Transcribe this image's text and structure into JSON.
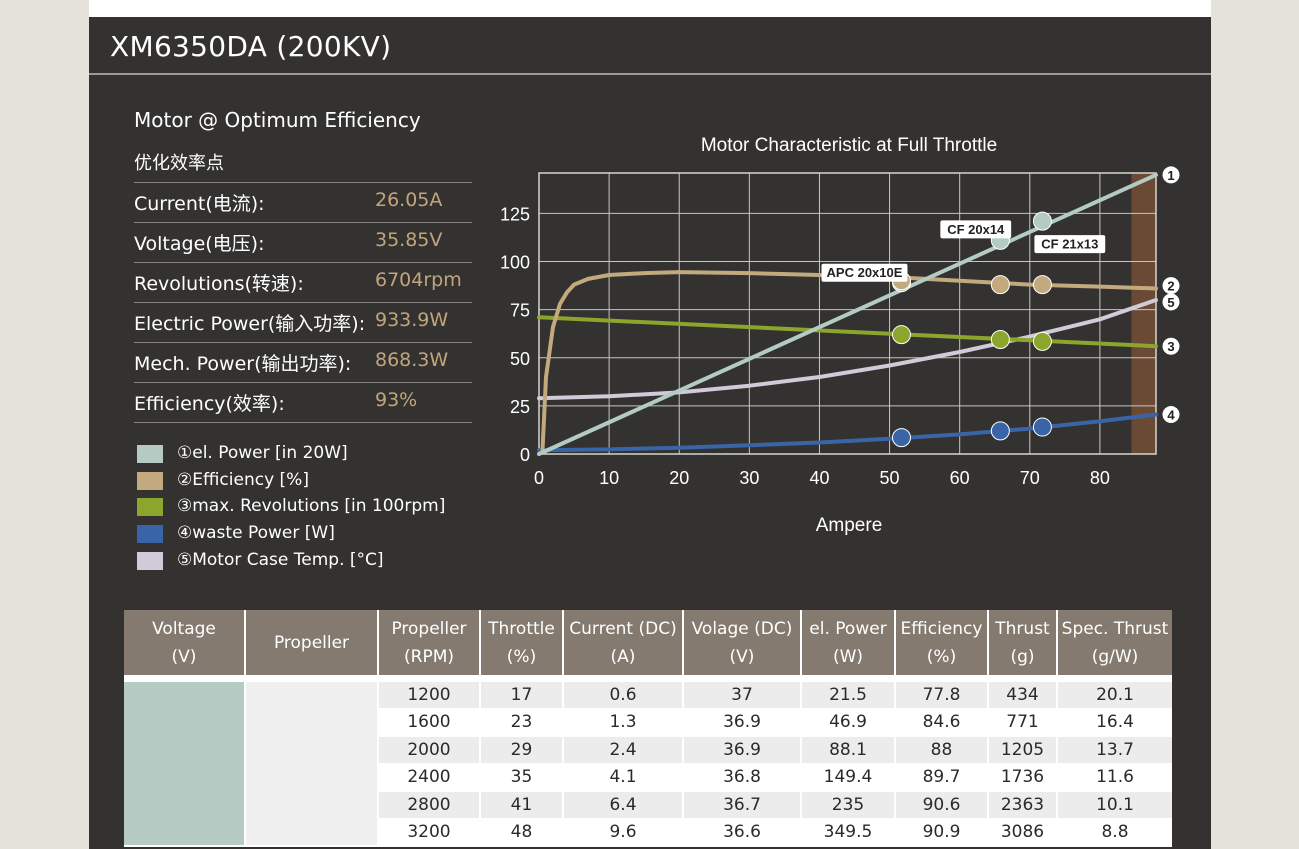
{
  "page_title": "XM6350DA (200KV)",
  "spec": {
    "heading": "Motor @ Optimum Efficiency",
    "subheading": "优化效率点",
    "rows": [
      {
        "label": "Current(电流):",
        "value": "26.05A"
      },
      {
        "label": "Voltage(电压):",
        "value": "35.85V"
      },
      {
        "label": "Revolutions(转速):",
        "value": "6704rpm"
      },
      {
        "label": "Electric Power(输入功率):",
        "value": "933.9W"
      },
      {
        "label": "Mech. Power(输出功率):",
        "value": "868.3W"
      },
      {
        "label": "Efficiency(效率):",
        "value": "93%"
      }
    ]
  },
  "legend": [
    {
      "label": "①el. Power [in 20W]",
      "color": "#b4cbc4"
    },
    {
      "label": "②Efficiency [%]",
      "color": "#c2a97e"
    },
    {
      "label": "③max. Revolutions [in 100rpm]",
      "color": "#8ca52c"
    },
    {
      "label": "④waste Power [W]",
      "color": "#3a64a8"
    },
    {
      "label": "⑤Motor Case Temp. [°C]",
      "color": "#cfcbd9"
    }
  ],
  "chart_data": {
    "type": "line",
    "title": "Motor Characteristic at Full Throttle",
    "xlabel": "Ampere",
    "ylabel": "",
    "xlim": [
      0,
      88
    ],
    "ylim": [
      0,
      146
    ],
    "xticks": [
      0,
      10,
      20,
      30,
      40,
      50,
      60,
      70,
      80
    ],
    "yticks": [
      0,
      25,
      50,
      75,
      100,
      125
    ],
    "grid": true,
    "shaded_region": {
      "x_from": 84.5,
      "x_to": 88,
      "color": "#6b4a35"
    },
    "series": [
      {
        "marker": "1",
        "color": "#b4cbc4",
        "x": [
          0,
          88
        ],
        "y": [
          0,
          145
        ]
      },
      {
        "marker": "2",
        "color": "#c2a97e",
        "x": [
          0.5,
          1,
          2,
          3,
          4,
          5,
          7,
          10,
          15,
          20,
          30,
          40,
          50,
          60,
          70,
          80,
          88
        ],
        "y": [
          2,
          40,
          66,
          78,
          84,
          88,
          91,
          93,
          94,
          94.5,
          94,
          93,
          92,
          90,
          88,
          87,
          86
        ]
      },
      {
        "marker": "3",
        "color": "#8ca52c",
        "x": [
          0,
          88
        ],
        "y": [
          71,
          56
        ]
      },
      {
        "marker": "4",
        "color": "#3a64a8",
        "x": [
          0,
          10,
          20,
          30,
          40,
          50,
          60,
          70,
          80,
          88
        ],
        "y": [
          2,
          2.4,
          3.2,
          4.5,
          6,
          7.9,
          10.2,
          13.2,
          17,
          20.5
        ]
      },
      {
        "marker": "5",
        "color": "#cfcbd9",
        "x": [
          0,
          10,
          20,
          30,
          40,
          50,
          60,
          70,
          80,
          88
        ],
        "y": [
          29,
          30,
          32,
          35.5,
          40,
          46,
          53,
          61,
          70,
          80
        ]
      }
    ],
    "operating_points": [
      {
        "label": "APC 20x10E",
        "x": 51.7,
        "el_power": 89,
        "efficiency": 90,
        "revolutions": 62,
        "waste_power": 8.5
      },
      {
        "label": "CF 20x14",
        "x": 65.8,
        "el_power": 111,
        "efficiency": 88,
        "revolutions": 59.5,
        "waste_power": 12
      },
      {
        "label": "CF 21x13",
        "x": 71.8,
        "el_power": 121,
        "efficiency": 88,
        "revolutions": 58.5,
        "waste_power": 14
      }
    ]
  },
  "table": {
    "headers": [
      [
        "Voltage",
        "(V)"
      ],
      [
        "Propeller",
        ""
      ],
      [
        "Propeller",
        "(RPM)"
      ],
      [
        "Throttle",
        "(%)"
      ],
      [
        "Current (DC)",
        "(A)"
      ],
      [
        "Volage (DC)",
        "(V)"
      ],
      [
        "el. Power",
        "(W)"
      ],
      [
        "Efficiency",
        "(%)"
      ],
      [
        "Thrust",
        "(g)"
      ],
      [
        "Spec. Thrust",
        "(g/W)"
      ]
    ],
    "rows": [
      [
        "1200",
        "17",
        "0.6",
        "37",
        "21.5",
        "77.8",
        "434",
        "20.1"
      ],
      [
        "1600",
        "23",
        "1.3",
        "36.9",
        "46.9",
        "84.6",
        "771",
        "16.4"
      ],
      [
        "2000",
        "29",
        "2.4",
        "36.9",
        "88.1",
        "88",
        "1205",
        "13.7"
      ],
      [
        "2400",
        "35",
        "4.1",
        "36.8",
        "149.4",
        "89.7",
        "1736",
        "11.6"
      ],
      [
        "2800",
        "41",
        "6.4",
        "36.7",
        "235",
        "90.6",
        "2363",
        "10.1"
      ],
      [
        "3200",
        "48",
        "9.6",
        "36.6",
        "349.5",
        "90.9",
        "3086",
        "8.8"
      ]
    ]
  }
}
